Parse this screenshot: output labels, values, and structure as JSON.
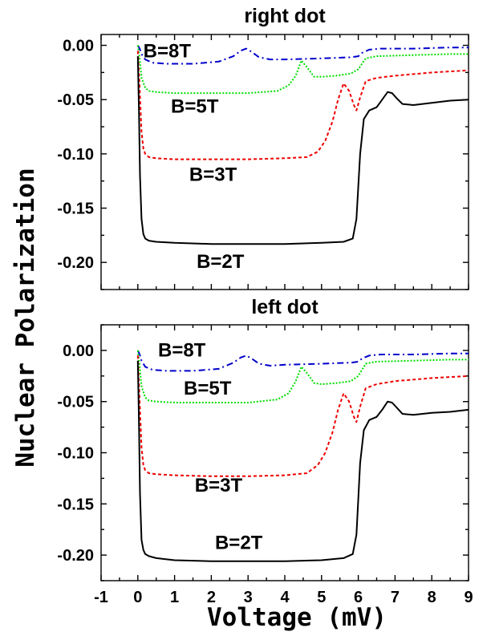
{
  "chart_data": {
    "type": "line",
    "xlabel": "Voltage (mV)",
    "ylabel": "Nuclear Polarization",
    "xlim": [
      -1,
      9
    ],
    "xticks": [
      "-1",
      "0",
      "1",
      "2",
      "3",
      "4",
      "5",
      "6",
      "7",
      "8",
      "9"
    ],
    "grid": false,
    "panels": [
      {
        "title": "right dot",
        "ylim": [
          -0.225,
          0.01
        ],
        "yticks": [
          "0.00",
          "-0.05",
          "-0.10",
          "-0.15",
          "-0.20"
        ],
        "series": [
          {
            "name": "B=8T",
            "color": "#0000cc",
            "dash": "8 4 2 4",
            "x": [
              0,
              0.05,
              0.1,
              0.2,
              0.4,
              0.8,
              1.5,
              2.2,
              2.6,
              2.8,
              2.95,
              3.1,
              3.3,
              3.6,
              4,
              5,
              5.8,
              6.0,
              6.1,
              6.3,
              6.6,
              7.5,
              8.5,
              9
            ],
            "y": [
              0.0,
              -0.003,
              -0.008,
              -0.013,
              -0.016,
              -0.017,
              -0.017,
              -0.015,
              -0.01,
              -0.005,
              -0.003,
              -0.006,
              -0.011,
              -0.013,
              -0.013,
              -0.012,
              -0.011,
              -0.01,
              -0.007,
              -0.004,
              -0.003,
              -0.003,
              -0.002,
              -0.002
            ]
          },
          {
            "name": "B=5T",
            "color": "#00dd00",
            "dash": "2 2",
            "x": [
              0,
              0.05,
              0.1,
              0.2,
              0.3,
              0.5,
              1,
              2,
              3,
              3.8,
              4.1,
              4.3,
              4.45,
              4.6,
              4.8,
              5,
              5.4,
              5.8,
              6.0,
              6.2,
              6.5,
              7.5,
              8.5,
              9
            ],
            "y": [
              0.0,
              -0.012,
              -0.03,
              -0.039,
              -0.042,
              -0.043,
              -0.044,
              -0.044,
              -0.044,
              -0.042,
              -0.037,
              -0.028,
              -0.014,
              -0.02,
              -0.029,
              -0.029,
              -0.028,
              -0.026,
              -0.022,
              -0.012,
              -0.01,
              -0.009,
              -0.008,
              -0.008
            ]
          },
          {
            "name": "B=3T",
            "color": "#ee0000",
            "dash": "4 3",
            "x": [
              0,
              0.05,
              0.1,
              0.15,
              0.2,
              0.3,
              0.5,
              1,
              2,
              3,
              4,
              4.6,
              4.9,
              5.1,
              5.3,
              5.45,
              5.6,
              5.75,
              5.88,
              5.95,
              6.05,
              6.2,
              6.5,
              7,
              8,
              9
            ],
            "y": [
              -0.005,
              -0.04,
              -0.08,
              -0.095,
              -0.1,
              -0.103,
              -0.104,
              -0.105,
              -0.105,
              -0.105,
              -0.104,
              -0.103,
              -0.098,
              -0.088,
              -0.07,
              -0.05,
              -0.035,
              -0.042,
              -0.055,
              -0.06,
              -0.048,
              -0.033,
              -0.03,
              -0.028,
              -0.025,
              -0.023
            ]
          },
          {
            "name": "B=2T",
            "color": "#000000",
            "dash": "",
            "x": [
              0,
              0.03,
              0.06,
              0.1,
              0.15,
              0.2,
              0.3,
              0.5,
              1,
              2,
              3,
              4,
              5,
              5.6,
              5.85,
              5.95,
              6.05,
              6.15,
              6.3,
              6.5,
              6.65,
              6.8,
              6.92,
              7.05,
              7.2,
              7.5,
              8,
              8.5,
              9
            ],
            "y": [
              -0.01,
              -0.06,
              -0.12,
              -0.16,
              -0.174,
              -0.178,
              -0.18,
              -0.181,
              -0.182,
              -0.183,
              -0.183,
              -0.183,
              -0.182,
              -0.181,
              -0.178,
              -0.16,
              -0.1,
              -0.068,
              -0.06,
              -0.057,
              -0.05,
              -0.043,
              -0.044,
              -0.049,
              -0.054,
              -0.055,
              -0.053,
              -0.051,
              -0.05
            ]
          }
        ],
        "annotations": [
          {
            "text": "B=8T",
            "x": 0.15,
            "y": -0.011
          },
          {
            "text": "B=5T",
            "x": 0.9,
            "y": -0.062
          },
          {
            "text": "B=3T",
            "x": 1.4,
            "y": -0.125
          },
          {
            "text": "B=2T",
            "x": 1.6,
            "y": -0.205
          }
        ]
      },
      {
        "title": "left dot",
        "ylim": [
          -0.225,
          0.025
        ],
        "yticks": [
          "0.00",
          "-0.05",
          "-0.10",
          "-0.15",
          "-0.20"
        ],
        "series": [
          {
            "name": "B=8T",
            "color": "#0000cc",
            "dash": "8 4 2 4",
            "x": [
              0,
              0.05,
              0.1,
              0.2,
              0.4,
              0.8,
              1.5,
              2.2,
              2.6,
              2.8,
              2.95,
              3.1,
              3.3,
              3.6,
              4,
              5,
              5.8,
              6.0,
              6.1,
              6.3,
              6.6,
              7.5,
              8.5,
              9
            ],
            "y": [
              0.0,
              -0.004,
              -0.01,
              -0.016,
              -0.019,
              -0.02,
              -0.02,
              -0.018,
              -0.012,
              -0.007,
              -0.005,
              -0.008,
              -0.013,
              -0.015,
              -0.014,
              -0.013,
              -0.012,
              -0.011,
              -0.008,
              -0.005,
              -0.004,
              -0.004,
              -0.003,
              -0.003
            ]
          },
          {
            "name": "B=5T",
            "color": "#00dd00",
            "dash": "2 2",
            "x": [
              0,
              0.05,
              0.1,
              0.2,
              0.3,
              0.5,
              1,
              2,
              3,
              3.8,
              4.1,
              4.3,
              4.45,
              4.6,
              4.8,
              5,
              5.4,
              5.8,
              6.0,
              6.2,
              6.5,
              7.5,
              8.5,
              9
            ],
            "y": [
              0.0,
              -0.015,
              -0.035,
              -0.046,
              -0.049,
              -0.05,
              -0.051,
              -0.051,
              -0.051,
              -0.048,
              -0.042,
              -0.03,
              -0.016,
              -0.022,
              -0.032,
              -0.033,
              -0.032,
              -0.03,
              -0.025,
              -0.013,
              -0.011,
              -0.01,
              -0.009,
              -0.009
            ]
          },
          {
            "name": "B=3T",
            "color": "#ee0000",
            "dash": "4 3",
            "x": [
              0,
              0.05,
              0.1,
              0.15,
              0.2,
              0.3,
              0.5,
              1,
              2,
              3,
              4,
              4.6,
              4.9,
              5.1,
              5.3,
              5.45,
              5.6,
              5.75,
              5.88,
              5.95,
              6.05,
              6.2,
              6.5,
              7,
              8,
              9
            ],
            "y": [
              -0.005,
              -0.05,
              -0.095,
              -0.112,
              -0.117,
              -0.12,
              -0.121,
              -0.122,
              -0.123,
              -0.123,
              -0.122,
              -0.12,
              -0.112,
              -0.1,
              -0.08,
              -0.058,
              -0.042,
              -0.05,
              -0.065,
              -0.07,
              -0.055,
              -0.037,
              -0.033,
              -0.03,
              -0.027,
              -0.025
            ]
          },
          {
            "name": "B=2T",
            "color": "#000000",
            "dash": "",
            "x": [
              0,
              0.03,
              0.06,
              0.1,
              0.15,
              0.2,
              0.3,
              0.5,
              1,
              2,
              3,
              4,
              5,
              5.6,
              5.85,
              5.95,
              6.05,
              6.15,
              6.3,
              6.5,
              6.65,
              6.8,
              6.92,
              7.05,
              7.2,
              7.5,
              8,
              8.5,
              9
            ],
            "y": [
              -0.01,
              -0.07,
              -0.14,
              -0.185,
              -0.195,
              -0.199,
              -0.201,
              -0.203,
              -0.205,
              -0.206,
              -0.206,
              -0.206,
              -0.205,
              -0.203,
              -0.199,
              -0.18,
              -0.11,
              -0.078,
              -0.068,
              -0.065,
              -0.058,
              -0.05,
              -0.051,
              -0.056,
              -0.062,
              -0.063,
              -0.061,
              -0.06,
              -0.058
            ]
          }
        ],
        "annotations": [
          {
            "text": "B=8T",
            "x": 0.55,
            "y": -0.006
          },
          {
            "text": "B=5T",
            "x": 1.25,
            "y": -0.043
          },
          {
            "text": "B=3T",
            "x": 1.55,
            "y": -0.138
          },
          {
            "text": "B=2T",
            "x": 2.1,
            "y": -0.194
          }
        ]
      }
    ]
  }
}
